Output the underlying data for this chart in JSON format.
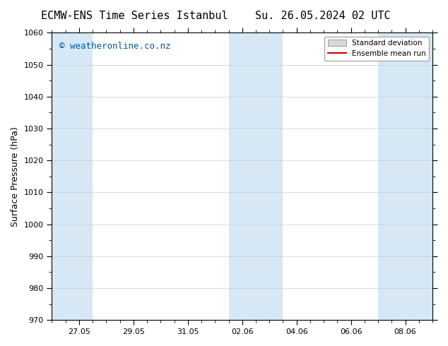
{
  "title_left": "ECMW-ENS Time Series Istanbul",
  "title_right": "Su. 26.05.2024 02 UTC",
  "ylabel": "Surface Pressure (hPa)",
  "ylim": [
    970,
    1060
  ],
  "yticks": [
    970,
    980,
    990,
    1000,
    1010,
    1020,
    1030,
    1040,
    1050,
    1060
  ],
  "watermark": "© weatheronline.co.nz",
  "watermark_color": "#0055aa",
  "background_color": "#ffffff",
  "plot_bg_color": "#ffffff",
  "shaded_band_color": "#d6e8f5",
  "shaded_band_alpha": 1.0,
  "mean_line_color": "#cc0000",
  "legend_std_label": "Standard deviation",
  "legend_mean_label": "Ensemble mean run",
  "title_fontsize": 11,
  "tick_fontsize": 8,
  "ylabel_fontsize": 9,
  "watermark_fontsize": 9,
  "x_start_num": 0,
  "x_end_num": 14,
  "xtick_positions": [
    1,
    3,
    5,
    7,
    9,
    11,
    13
  ],
  "xtick_labels": [
    "27.05",
    "29.05",
    "31.05",
    "02.06",
    "04.06",
    "06.06",
    "08.06"
  ],
  "shaded_bands": [
    {
      "x_start": 0,
      "x_end": 1.5
    },
    {
      "x_start": 6.5,
      "x_end": 8.5
    },
    {
      "x_start": 12,
      "x_end": 14
    }
  ],
  "x_minor_ticks": [
    0,
    0.5,
    1,
    1.5,
    2,
    2.5,
    3,
    3.5,
    4,
    4.5,
    5,
    5.5,
    6,
    6.5,
    7,
    7.5,
    8,
    8.5,
    9,
    9.5,
    10,
    10.5,
    11,
    11.5,
    12,
    12.5,
    13,
    13.5,
    14
  ]
}
